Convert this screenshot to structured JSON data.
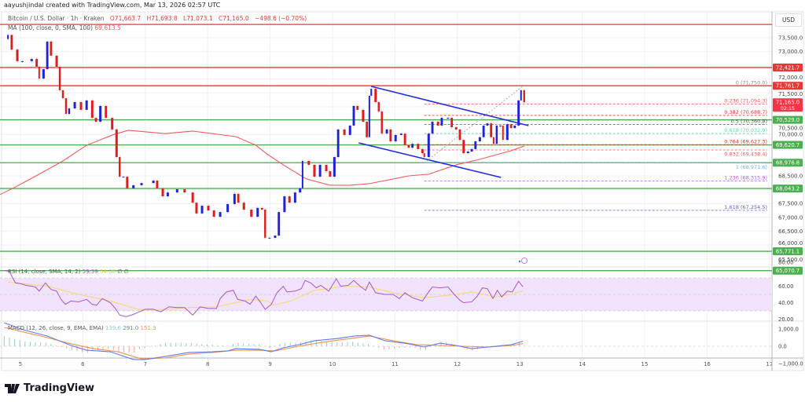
{
  "credit": "aayushjindal created with TradingView.com, Mar 13, 2026 02:57 UTC",
  "legend": {
    "symbol": "Bitcoin / U.S. Dollar · 1h · Kraken",
    "open": "O71,663.7",
    "high": "H71,693.8",
    "low": "L71,073.1",
    "close": "C71,165.0",
    "change": "−498.6 (−0.70%)"
  },
  "ma_legend": {
    "label": "MA (100, close, 0, SMA, 100)",
    "value": "69,613.5"
  },
  "rsi_legend": {
    "label": "RSI (14, close, SMA, 14, 2)",
    "value": "59.39",
    "sma": "54.38",
    "extra1": "∅",
    "extra2": "∅"
  },
  "macd_legend": {
    "label": "MACD (12, 26, close, 9, EMA, EMA)",
    "hist": "139.6",
    "macd": "291.0",
    "signal": "151.3"
  },
  "currency": "USD",
  "logo_text": "TradingView",
  "countdown": "02:15",
  "colors": {
    "up": "#1f23d8",
    "down": "#e31b1b",
    "ma": "#f05a5a",
    "resistance": "#e53935",
    "support": "#4caf50",
    "trendline": "#1f2ee0",
    "rsi": "#a855c8",
    "rsi_sma": "#f5d96b",
    "rsi_band": "#f1e3fb",
    "macd": "#5b7cf0",
    "signal": "#f7904a",
    "hist_up": "#8fd1c4",
    "hist_down": "#f4a0a0"
  },
  "chart_data": {
    "type": "candlestick",
    "title": "Bitcoin / U.S. Dollar · 1h · Kraken",
    "xlim": [
      4.67,
      16.95
    ],
    "ylim": [
      65063,
      74010
    ],
    "grid": true,
    "x_ticks": [
      "5",
      "6",
      "7",
      "8",
      "9",
      "10",
      "11",
      "12",
      "13",
      "14",
      "15",
      "16",
      "17"
    ],
    "y_ticks": [
      "73,500.0",
      "73,000.0",
      "72,000.0",
      "71,500.0",
      "70,500.0",
      "70,000.0",
      "68,500.0",
      "67,500.0",
      "67,000.0",
      "66,500.0",
      "66,000.0",
      "65,500.0"
    ],
    "closes": [
      [
        4.76,
        73450
      ],
      [
        4.8,
        73600
      ],
      [
        4.86,
        73070
      ],
      [
        4.95,
        72650
      ],
      [
        5.03,
        72650
      ],
      [
        5.18,
        72730
      ],
      [
        5.26,
        72450
      ],
      [
        5.3,
        72020
      ],
      [
        5.37,
        72360
      ],
      [
        5.43,
        73360
      ],
      [
        5.49,
        72850
      ],
      [
        5.58,
        72450
      ],
      [
        5.63,
        71600
      ],
      [
        5.68,
        71310
      ],
      [
        5.73,
        70740
      ],
      [
        5.78,
        70940
      ],
      [
        5.87,
        71170
      ],
      [
        5.97,
        70890
      ],
      [
        6.06,
        71230
      ],
      [
        6.15,
        70600
      ],
      [
        6.21,
        70460
      ],
      [
        6.28,
        71030
      ],
      [
        6.37,
        70600
      ],
      [
        6.47,
        70180
      ],
      [
        6.54,
        69180
      ],
      [
        6.59,
        68470
      ],
      [
        6.65,
        68470
      ],
      [
        6.71,
        68050
      ],
      [
        6.81,
        68160
      ],
      [
        6.94,
        68240
      ],
      [
        7.13,
        68330
      ],
      [
        7.19,
        68050
      ],
      [
        7.28,
        67760
      ],
      [
        7.36,
        67900
      ],
      [
        7.51,
        68020
      ],
      [
        7.63,
        67900
      ],
      [
        7.76,
        67530
      ],
      [
        7.82,
        67140
      ],
      [
        7.91,
        67420
      ],
      [
        8.01,
        67250
      ],
      [
        8.1,
        67020
      ],
      [
        8.2,
        67190
      ],
      [
        8.32,
        67480
      ],
      [
        8.43,
        67850
      ],
      [
        8.49,
        67530
      ],
      [
        8.58,
        67280
      ],
      [
        8.7,
        67020
      ],
      [
        8.8,
        67340
      ],
      [
        8.87,
        67280
      ],
      [
        8.92,
        66260
      ],
      [
        8.99,
        66260
      ],
      [
        9.08,
        66340
      ],
      [
        9.14,
        67190
      ],
      [
        9.23,
        67760
      ],
      [
        9.31,
        67530
      ],
      [
        9.4,
        67900
      ],
      [
        9.48,
        68050
      ],
      [
        9.52,
        69040
      ],
      [
        9.62,
        68900
      ],
      [
        9.71,
        68470
      ],
      [
        9.8,
        68900
      ],
      [
        9.9,
        68670
      ],
      [
        9.96,
        68470
      ],
      [
        10.03,
        69180
      ],
      [
        10.09,
        70180
      ],
      [
        10.19,
        69980
      ],
      [
        10.28,
        70320
      ],
      [
        10.34,
        71030
      ],
      [
        10.4,
        70890
      ],
      [
        10.49,
        70460
      ],
      [
        10.55,
        69900
      ],
      [
        10.59,
        71400
      ],
      [
        10.62,
        71650
      ],
      [
        10.69,
        71170
      ],
      [
        10.74,
        70830
      ],
      [
        10.79,
        70030
      ],
      [
        10.87,
        70180
      ],
      [
        10.93,
        69750
      ],
      [
        11.01,
        69980
      ],
      [
        11.1,
        70030
      ],
      [
        11.16,
        69610
      ],
      [
        11.22,
        69520
      ],
      [
        11.28,
        69660
      ],
      [
        11.37,
        69470
      ],
      [
        11.44,
        69320
      ],
      [
        11.47,
        69180
      ],
      [
        11.54,
        70030
      ],
      [
        11.6,
        70460
      ],
      [
        11.69,
        70320
      ],
      [
        11.75,
        70600
      ],
      [
        11.85,
        70600
      ],
      [
        11.91,
        70260
      ],
      [
        11.98,
        70180
      ],
      [
        12.04,
        69800
      ],
      [
        12.1,
        69320
      ],
      [
        12.17,
        69380
      ],
      [
        12.23,
        69470
      ],
      [
        12.29,
        69750
      ],
      [
        12.36,
        69900
      ],
      [
        12.42,
        70320
      ],
      [
        12.48,
        70400
      ],
      [
        12.54,
        69900
      ],
      [
        12.58,
        69660
      ],
      [
        12.63,
        70320
      ],
      [
        12.69,
        70320
      ],
      [
        12.73,
        69800
      ],
      [
        12.8,
        70370
      ],
      [
        12.86,
        70230
      ],
      [
        12.92,
        70320
      ],
      [
        12.98,
        71230
      ],
      [
        13.02,
        71600
      ],
      [
        13.07,
        71165
      ]
    ],
    "ma100": [
      [
        4.67,
        67820
      ],
      [
        4.92,
        68100
      ],
      [
        5.3,
        68560
      ],
      [
        5.68,
        69040
      ],
      [
        6.06,
        69610
      ],
      [
        6.5,
        70000
      ],
      [
        6.73,
        70150
      ],
      [
        7.32,
        70030
      ],
      [
        7.76,
        70120
      ],
      [
        8.45,
        69920
      ],
      [
        8.77,
        69610
      ],
      [
        8.95,
        69290
      ],
      [
        9.21,
        68900
      ],
      [
        9.58,
        68390
      ],
      [
        9.96,
        68160
      ],
      [
        10.28,
        68160
      ],
      [
        10.59,
        68220
      ],
      [
        11.22,
        68500
      ],
      [
        11.54,
        68560
      ],
      [
        11.98,
        68900
      ],
      [
        12.36,
        69100
      ],
      [
        12.86,
        69410
      ],
      [
        13.07,
        69580
      ]
    ],
    "levels": [
      {
        "price": 73980,
        "label": "",
        "kind": "resistance"
      },
      {
        "price": 72421.7,
        "label": "72,421.7",
        "kind": "resistance"
      },
      {
        "price": 71761.7,
        "label": "71,761.7",
        "kind": "resistance"
      },
      {
        "price": 70529.0,
        "label": "70,529.0",
        "kind": "support"
      },
      {
        "price": 69620.7,
        "label": "69,620.7",
        "kind": "support"
      },
      {
        "price": 68976.8,
        "label": "68,976.8",
        "kind": "support"
      },
      {
        "price": 68043.2,
        "label": "68,043.2",
        "kind": "support"
      },
      {
        "price": 65771.1,
        "label": "65,771.1",
        "kind": "support"
      },
      {
        "price": 65070.7,
        "label": "65,070.7",
        "kind": "support"
      }
    ],
    "last_price": {
      "price": 71165.0,
      "label": "71,165.0"
    },
    "fib": {
      "from": [
        11.47,
        68971.6
      ],
      "to": [
        13.05,
        71750.0
      ],
      "extend_to": 16.95,
      "levels": [
        {
          "ratio": "0",
          "price": 71750.0,
          "label": "0 (71,750.0)",
          "color": "#888888"
        },
        {
          "ratio": "0.236",
          "price": 71094.3,
          "label": "0.236 (71,094.3)",
          "color": "#f05a5a"
        },
        {
          "ratio": "0.382",
          "price": 70688.7,
          "label": "0.382 (70,688.7)",
          "color": "#e53935"
        },
        {
          "ratio": "0.5",
          "price": 70360.8,
          "label": "0.5 (70,360.8)",
          "color": "#555555"
        },
        {
          "ratio": "0.618",
          "price": 70032.9,
          "label": "0.618 (70,032.9)",
          "color": "#5fd3b3"
        },
        {
          "ratio": "0.764",
          "price": 69627.3,
          "label": "0.764 (69,627.3)",
          "color": "#d32f2f"
        },
        {
          "ratio": "0.832",
          "price": 69438.4,
          "label": "0.832 (69,438.4)",
          "color": "#f05a5a"
        },
        {
          "ratio": "1",
          "price": 68971.6,
          "label": "1 (68,971.6)",
          "color": "#64b5f6"
        },
        {
          "ratio": "1.236",
          "price": 68315.9,
          "label": "1.236 (68,315.9)",
          "color": "#b05ce0"
        },
        {
          "ratio": "1.618",
          "price": 67254.5,
          "label": "1.618 (67,254.5)",
          "color": "#5c5ce0"
        }
      ]
    },
    "trendlines": [
      {
        "from": [
          10.62,
          71739
        ],
        "to": [
          13.14,
          70318
        ]
      },
      {
        "from": [
          10.42,
          69693
        ],
        "to": [
          12.7,
          68443
        ]
      }
    ],
    "rsi": {
      "ylim": [
        15,
        85
      ],
      "ticks": [
        "80.00",
        "60.00",
        "40.00",
        "20.00"
      ],
      "band": [
        30,
        70
      ],
      "values": [
        [
          4.74,
          79
        ],
        [
          4.82,
          78
        ],
        [
          4.92,
          64
        ],
        [
          5.01,
          63
        ],
        [
          5.09,
          61
        ],
        [
          5.18,
          60
        ],
        [
          5.24,
          59
        ],
        [
          5.3,
          54
        ],
        [
          5.4,
          64
        ],
        [
          5.49,
          56
        ],
        [
          5.58,
          54
        ],
        [
          5.65,
          44
        ],
        [
          5.72,
          38
        ],
        [
          5.81,
          42
        ],
        [
          5.93,
          41
        ],
        [
          6.06,
          44
        ],
        [
          6.15,
          38
        ],
        [
          6.22,
          37
        ],
        [
          6.31,
          45
        ],
        [
          6.44,
          40
        ],
        [
          6.52,
          33
        ],
        [
          6.59,
          25
        ],
        [
          6.69,
          23
        ],
        [
          6.78,
          25
        ],
        [
          6.88,
          28
        ],
        [
          7.0,
          32
        ],
        [
          7.13,
          32
        ],
        [
          7.25,
          29
        ],
        [
          7.38,
          35
        ],
        [
          7.51,
          34
        ],
        [
          7.63,
          34
        ],
        [
          7.76,
          25
        ],
        [
          7.88,
          35
        ],
        [
          8.01,
          33
        ],
        [
          8.14,
          33
        ],
        [
          8.2,
          45
        ],
        [
          8.3,
          53
        ],
        [
          8.41,
          55
        ],
        [
          8.48,
          44
        ],
        [
          8.6,
          42
        ],
        [
          8.68,
          38
        ],
        [
          8.77,
          48
        ],
        [
          8.85,
          40
        ],
        [
          8.92,
          32
        ],
        [
          9.02,
          38
        ],
        [
          9.11,
          52
        ],
        [
          9.21,
          60
        ],
        [
          9.27,
          53
        ],
        [
          9.4,
          54
        ],
        [
          9.5,
          57
        ],
        [
          9.56,
          67
        ],
        [
          9.65,
          64
        ],
        [
          9.74,
          58
        ],
        [
          9.81,
          61
        ],
        [
          9.94,
          54
        ],
        [
          10.06,
          69
        ],
        [
          10.13,
          60
        ],
        [
          10.25,
          61
        ],
        [
          10.34,
          67
        ],
        [
          10.44,
          60
        ],
        [
          10.53,
          55
        ],
        [
          10.59,
          65
        ],
        [
          10.69,
          52
        ],
        [
          10.84,
          50
        ],
        [
          10.97,
          50
        ],
        [
          11.07,
          45
        ],
        [
          11.16,
          52
        ],
        [
          11.28,
          46
        ],
        [
          11.44,
          42
        ],
        [
          11.54,
          53
        ],
        [
          11.6,
          59
        ],
        [
          11.72,
          58
        ],
        [
          11.85,
          59
        ],
        [
          11.95,
          50
        ],
        [
          12.04,
          43
        ],
        [
          12.1,
          40
        ],
        [
          12.23,
          41
        ],
        [
          12.32,
          48
        ],
        [
          12.4,
          58
        ],
        [
          12.48,
          57
        ],
        [
          12.57,
          45
        ],
        [
          12.64,
          55
        ],
        [
          12.71,
          47
        ],
        [
          12.8,
          54
        ],
        [
          12.88,
          53
        ],
        [
          12.98,
          66
        ],
        [
          13.05,
          59.39
        ]
      ],
      "sma": [
        [
          4.8,
          65
        ],
        [
          5.43,
          60
        ],
        [
          5.93,
          50
        ],
        [
          6.44,
          42
        ],
        [
          6.88,
          32
        ],
        [
          7.19,
          31
        ],
        [
          7.7,
          34
        ],
        [
          8.14,
          35
        ],
        [
          8.45,
          40
        ],
        [
          8.7,
          44
        ],
        [
          8.95,
          42
        ],
        [
          9.06,
          37
        ],
        [
          9.33,
          42
        ],
        [
          9.71,
          55
        ],
        [
          10.21,
          60
        ],
        [
          10.59,
          59
        ],
        [
          10.97,
          52
        ],
        [
          11.47,
          46
        ],
        [
          11.98,
          50
        ],
        [
          12.23,
          53
        ],
        [
          12.61,
          47
        ],
        [
          12.86,
          50
        ],
        [
          13.05,
          54.38
        ]
      ]
    },
    "macd": {
      "ylim": [
        -1000,
        1300
      ],
      "ticks": [
        "1,000.0",
        "0.0",
        "−1,000.0"
      ],
      "macd": [
        [
          4.74,
          1360
        ],
        [
          5.05,
          950
        ],
        [
          5.43,
          590
        ],
        [
          5.81,
          45
        ],
        [
          6.06,
          -230
        ],
        [
          6.44,
          -320
        ],
        [
          6.81,
          -770
        ],
        [
          7.0,
          -770
        ],
        [
          7.32,
          -590
        ],
        [
          7.7,
          -360
        ],
        [
          8.07,
          -320
        ],
        [
          8.32,
          -270
        ],
        [
          8.45,
          -140
        ],
        [
          8.83,
          -180
        ],
        [
          9.02,
          -320
        ],
        [
          9.21,
          -90
        ],
        [
          9.46,
          90
        ],
        [
          9.71,
          320
        ],
        [
          10.09,
          450
        ],
        [
          10.34,
          590
        ],
        [
          10.59,
          640
        ],
        [
          10.84,
          320
        ],
        [
          11.22,
          140
        ],
        [
          11.47,
          -45
        ],
        [
          11.72,
          180
        ],
        [
          11.98,
          45
        ],
        [
          12.23,
          -140
        ],
        [
          12.61,
          0
        ],
        [
          12.86,
          90
        ],
        [
          13.05,
          291
        ]
      ],
      "signal": [
        [
          4.74,
          1090
        ],
        [
          5.05,
          820
        ],
        [
          5.43,
          500
        ],
        [
          5.81,
          140
        ],
        [
          6.18,
          -140
        ],
        [
          6.56,
          -320
        ],
        [
          6.94,
          -730
        ],
        [
          7.32,
          -680
        ],
        [
          7.7,
          -450
        ],
        [
          8.07,
          -360
        ],
        [
          8.45,
          -230
        ],
        [
          8.83,
          -230
        ],
        [
          9.08,
          -270
        ],
        [
          9.46,
          0
        ],
        [
          9.84,
          230
        ],
        [
          10.21,
          410
        ],
        [
          10.59,
          590
        ],
        [
          10.97,
          320
        ],
        [
          11.35,
          90
        ],
        [
          11.72,
          45
        ],
        [
          12.1,
          0
        ],
        [
          12.48,
          -45
        ],
        [
          12.86,
          45
        ],
        [
          13.05,
          151
        ]
      ]
    }
  }
}
